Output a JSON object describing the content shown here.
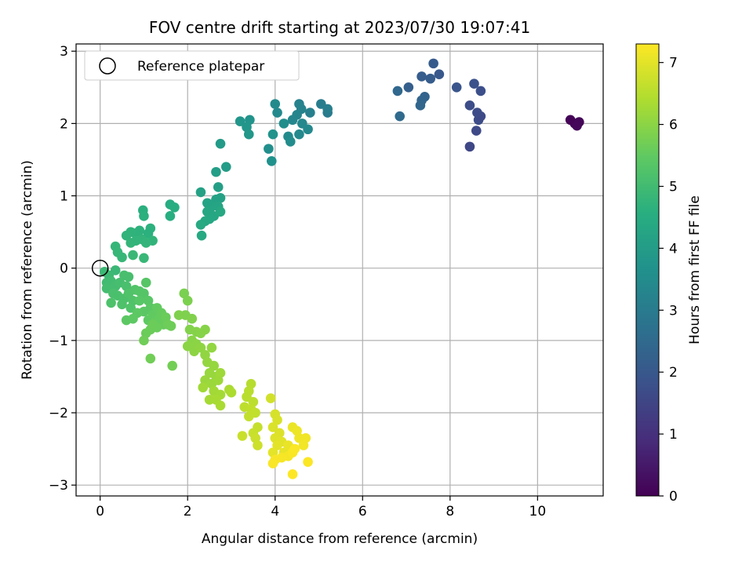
{
  "chart_data": {
    "type": "scatter",
    "title": "FOV centre drift starting at 2023/07/30 19:07:41",
    "xlabel": "Angular distance from reference (arcmin)",
    "ylabel": "Rotation from reference (arcmin)",
    "xlim": [
      -0.55,
      11.5
    ],
    "ylim": [
      -3.15,
      3.1
    ],
    "xticks": [
      0,
      2,
      4,
      6,
      8,
      10
    ],
    "yticks": [
      -3,
      -2,
      -1,
      0,
      1,
      2,
      3
    ],
    "grid": true,
    "legend": {
      "position": "upper-left",
      "entries": [
        "Reference platepar"
      ]
    },
    "reference_point": {
      "x": 0,
      "y": 0
    },
    "colorbar": {
      "label": "Hours from first FF file",
      "min": 0,
      "max": 7.3,
      "ticks": [
        0,
        1,
        2,
        3,
        4,
        5,
        6,
        7
      ],
      "colormap": "viridis"
    },
    "points": [
      {
        "x": 10.75,
        "y": 2.05,
        "c": 0.05
      },
      {
        "x": 10.85,
        "y": 2.0,
        "c": 0.08
      },
      {
        "x": 10.95,
        "y": 2.02,
        "c": 0.1
      },
      {
        "x": 10.9,
        "y": 1.97,
        "c": 0.12
      },
      {
        "x": 8.45,
        "y": 1.68,
        "c": 1.55
      },
      {
        "x": 8.6,
        "y": 1.9,
        "c": 1.6
      },
      {
        "x": 8.65,
        "y": 2.05,
        "c": 1.65
      },
      {
        "x": 8.7,
        "y": 2.1,
        "c": 1.62
      },
      {
        "x": 8.62,
        "y": 2.15,
        "c": 1.68
      },
      {
        "x": 8.45,
        "y": 2.25,
        "c": 1.7
      },
      {
        "x": 8.7,
        "y": 2.45,
        "c": 1.75
      },
      {
        "x": 8.55,
        "y": 2.55,
        "c": 1.8
      },
      {
        "x": 8.15,
        "y": 2.5,
        "c": 1.9
      },
      {
        "x": 7.75,
        "y": 2.68,
        "c": 2.0
      },
      {
        "x": 7.62,
        "y": 2.83,
        "c": 2.05
      },
      {
        "x": 7.55,
        "y": 2.62,
        "c": 2.1
      },
      {
        "x": 7.35,
        "y": 2.65,
        "c": 2.15
      },
      {
        "x": 7.05,
        "y": 2.5,
        "c": 2.2
      },
      {
        "x": 7.42,
        "y": 2.37,
        "c": 2.3
      },
      {
        "x": 7.35,
        "y": 2.32,
        "c": 2.35
      },
      {
        "x": 7.32,
        "y": 2.25,
        "c": 2.4
      },
      {
        "x": 6.8,
        "y": 2.45,
        "c": 2.45
      },
      {
        "x": 6.85,
        "y": 2.1,
        "c": 2.5
      },
      {
        "x": 5.2,
        "y": 2.15,
        "c": 3.0
      },
      {
        "x": 5.05,
        "y": 2.27,
        "c": 3.05
      },
      {
        "x": 5.2,
        "y": 2.2,
        "c": 3.1
      },
      {
        "x": 4.8,
        "y": 2.15,
        "c": 3.15
      },
      {
        "x": 4.55,
        "y": 2.27,
        "c": 3.2
      },
      {
        "x": 4.6,
        "y": 2.2,
        "c": 3.25
      },
      {
        "x": 4.5,
        "y": 2.12,
        "c": 3.3
      },
      {
        "x": 4.4,
        "y": 2.05,
        "c": 3.35
      },
      {
        "x": 4.62,
        "y": 2.0,
        "c": 3.38
      },
      {
        "x": 4.75,
        "y": 1.92,
        "c": 3.4
      },
      {
        "x": 4.55,
        "y": 1.85,
        "c": 3.42
      },
      {
        "x": 4.3,
        "y": 1.82,
        "c": 3.45
      },
      {
        "x": 4.35,
        "y": 1.75,
        "c": 3.5
      },
      {
        "x": 4.2,
        "y": 2.0,
        "c": 3.55
      },
      {
        "x": 4.05,
        "y": 2.15,
        "c": 3.4
      },
      {
        "x": 4.0,
        "y": 2.27,
        "c": 3.45
      },
      {
        "x": 3.85,
        "y": 1.65,
        "c": 3.6
      },
      {
        "x": 3.92,
        "y": 1.48,
        "c": 3.65
      },
      {
        "x": 3.95,
        "y": 1.85,
        "c": 3.7
      },
      {
        "x": 3.42,
        "y": 2.05,
        "c": 3.75
      },
      {
        "x": 3.2,
        "y": 2.03,
        "c": 3.8
      },
      {
        "x": 3.35,
        "y": 1.95,
        "c": 3.82
      },
      {
        "x": 3.4,
        "y": 1.85,
        "c": 3.85
      },
      {
        "x": 2.75,
        "y": 1.72,
        "c": 3.95
      },
      {
        "x": 2.88,
        "y": 1.4,
        "c": 4.0
      },
      {
        "x": 2.65,
        "y": 1.33,
        "c": 4.05
      },
      {
        "x": 2.7,
        "y": 1.12,
        "c": 4.1
      },
      {
        "x": 2.3,
        "y": 1.05,
        "c": 4.15
      },
      {
        "x": 2.65,
        "y": 0.95,
        "c": 4.2
      },
      {
        "x": 2.55,
        "y": 0.85,
        "c": 4.25
      },
      {
        "x": 2.45,
        "y": 0.9,
        "c": 4.22
      },
      {
        "x": 2.75,
        "y": 0.97,
        "c": 4.18
      },
      {
        "x": 2.7,
        "y": 0.85,
        "c": 4.28
      },
      {
        "x": 2.45,
        "y": 0.78,
        "c": 4.3
      },
      {
        "x": 2.6,
        "y": 0.72,
        "c": 4.32
      },
      {
        "x": 2.5,
        "y": 0.68,
        "c": 4.35
      },
      {
        "x": 2.4,
        "y": 0.65,
        "c": 4.36
      },
      {
        "x": 2.75,
        "y": 0.78,
        "c": 4.38
      },
      {
        "x": 2.3,
        "y": 0.6,
        "c": 4.4
      },
      {
        "x": 2.32,
        "y": 0.45,
        "c": 4.42
      },
      {
        "x": 1.6,
        "y": 0.88,
        "c": 4.5
      },
      {
        "x": 1.7,
        "y": 0.84,
        "c": 4.52
      },
      {
        "x": 1.6,
        "y": 0.72,
        "c": 4.55
      },
      {
        "x": 0.98,
        "y": 0.8,
        "c": 4.6
      },
      {
        "x": 1.0,
        "y": 0.72,
        "c": 4.62
      },
      {
        "x": 1.15,
        "y": 0.55,
        "c": 4.65
      },
      {
        "x": 1.1,
        "y": 0.48,
        "c": 4.62
      },
      {
        "x": 0.9,
        "y": 0.52,
        "c": 4.66
      },
      {
        "x": 0.8,
        "y": 0.48,
        "c": 4.68
      },
      {
        "x": 0.7,
        "y": 0.5,
        "c": 4.7
      },
      {
        "x": 0.6,
        "y": 0.45,
        "c": 4.72
      },
      {
        "x": 0.95,
        "y": 0.4,
        "c": 4.74
      },
      {
        "x": 0.82,
        "y": 0.38,
        "c": 4.75
      },
      {
        "x": 1.2,
        "y": 0.38,
        "c": 4.73
      },
      {
        "x": 1.05,
        "y": 0.35,
        "c": 4.76
      },
      {
        "x": 0.7,
        "y": 0.35,
        "c": 4.78
      },
      {
        "x": 0.35,
        "y": 0.3,
        "c": 4.8
      },
      {
        "x": 0.4,
        "y": 0.22,
        "c": 4.82
      },
      {
        "x": 0.5,
        "y": 0.15,
        "c": 4.84
      },
      {
        "x": 0.75,
        "y": 0.18,
        "c": 4.86
      },
      {
        "x": 1.0,
        "y": 0.14,
        "c": 4.85
      },
      {
        "x": 0.35,
        "y": -0.03,
        "c": 4.88
      },
      {
        "x": 0.1,
        "y": -0.05,
        "c": 4.9
      },
      {
        "x": 0.2,
        "y": -0.1,
        "c": 4.92
      },
      {
        "x": 0.15,
        "y": -0.2,
        "c": 5.0
      },
      {
        "x": 0.25,
        "y": -0.18,
        "c": 5.02
      },
      {
        "x": 0.35,
        "y": -0.25,
        "c": 5.05
      },
      {
        "x": 0.15,
        "y": -0.28,
        "c": 5.06
      },
      {
        "x": 0.45,
        "y": -0.2,
        "c": 5.08
      },
      {
        "x": 0.55,
        "y": -0.1,
        "c": 5.1
      },
      {
        "x": 0.65,
        "y": -0.12,
        "c": 5.12
      },
      {
        "x": 0.6,
        "y": -0.25,
        "c": 5.14
      },
      {
        "x": 0.3,
        "y": -0.35,
        "c": 5.15
      },
      {
        "x": 0.4,
        "y": -0.38,
        "c": 5.16
      },
      {
        "x": 0.55,
        "y": -0.42,
        "c": 5.18
      },
      {
        "x": 0.25,
        "y": -0.48,
        "c": 5.2
      },
      {
        "x": 0.5,
        "y": -0.5,
        "c": 5.22
      },
      {
        "x": 0.65,
        "y": -0.35,
        "c": 5.24
      },
      {
        "x": 0.75,
        "y": -0.45,
        "c": 5.25
      },
      {
        "x": 0.7,
        "y": -0.55,
        "c": 5.26
      },
      {
        "x": 0.8,
        "y": -0.3,
        "c": 5.28
      },
      {
        "x": 0.9,
        "y": -0.32,
        "c": 5.3
      },
      {
        "x": 1.0,
        "y": -0.35,
        "c": 5.32
      },
      {
        "x": 1.05,
        "y": -0.2,
        "c": 5.34
      },
      {
        "x": 0.9,
        "y": -0.45,
        "c": 5.36
      },
      {
        "x": 1.1,
        "y": -0.45,
        "c": 5.38
      },
      {
        "x": 1.15,
        "y": -0.55,
        "c": 5.4
      },
      {
        "x": 1.0,
        "y": -0.6,
        "c": 5.42
      },
      {
        "x": 0.85,
        "y": -0.62,
        "c": 5.44
      },
      {
        "x": 0.6,
        "y": -0.72,
        "c": 5.45
      },
      {
        "x": 0.75,
        "y": -0.7,
        "c": 5.46
      },
      {
        "x": 1.1,
        "y": -0.72,
        "c": 5.48
      },
      {
        "x": 1.2,
        "y": -0.65,
        "c": 5.5
      },
      {
        "x": 1.3,
        "y": -0.55,
        "c": 5.52
      },
      {
        "x": 1.25,
        "y": -0.75,
        "c": 5.54
      },
      {
        "x": 1.35,
        "y": -0.7,
        "c": 5.55
      },
      {
        "x": 1.4,
        "y": -0.62,
        "c": 5.56
      },
      {
        "x": 1.45,
        "y": -0.78,
        "c": 5.58
      },
      {
        "x": 1.5,
        "y": -0.68,
        "c": 5.6
      },
      {
        "x": 1.3,
        "y": -0.82,
        "c": 5.6
      },
      {
        "x": 1.15,
        "y": -0.85,
        "c": 5.62
      },
      {
        "x": 1.05,
        "y": -0.9,
        "c": 5.63
      },
      {
        "x": 1.2,
        "y": -0.78,
        "c": 5.64
      },
      {
        "x": 1.55,
        "y": -0.78,
        "c": 5.65
      },
      {
        "x": 1.62,
        "y": -0.8,
        "c": 5.66
      },
      {
        "x": 1.0,
        "y": -1.0,
        "c": 5.68
      },
      {
        "x": 1.15,
        "y": -1.25,
        "c": 5.7
      },
      {
        "x": 1.65,
        "y": -1.35,
        "c": 5.72
      },
      {
        "x": 1.92,
        "y": -0.35,
        "c": 5.8
      },
      {
        "x": 2.0,
        "y": -0.45,
        "c": 5.82
      },
      {
        "x": 1.95,
        "y": -0.65,
        "c": 5.84
      },
      {
        "x": 1.8,
        "y": -0.65,
        "c": 5.86
      },
      {
        "x": 2.1,
        "y": -0.7,
        "c": 5.88
      },
      {
        "x": 2.05,
        "y": -0.85,
        "c": 5.9
      },
      {
        "x": 2.2,
        "y": -0.88,
        "c": 5.92
      },
      {
        "x": 2.3,
        "y": -0.9,
        "c": 5.94
      },
      {
        "x": 2.4,
        "y": -0.85,
        "c": 5.95
      },
      {
        "x": 2.1,
        "y": -1.0,
        "c": 5.96
      },
      {
        "x": 2.2,
        "y": -1.05,
        "c": 5.98
      },
      {
        "x": 2.0,
        "y": -1.08,
        "c": 6.0
      },
      {
        "x": 2.15,
        "y": -1.15,
        "c": 6.02
      },
      {
        "x": 2.3,
        "y": -1.1,
        "c": 6.04
      },
      {
        "x": 2.4,
        "y": -1.2,
        "c": 6.06
      },
      {
        "x": 2.55,
        "y": -1.1,
        "c": 6.08
      },
      {
        "x": 2.45,
        "y": -1.3,
        "c": 6.1
      },
      {
        "x": 2.6,
        "y": -1.35,
        "c": 6.12
      },
      {
        "x": 2.5,
        "y": -1.45,
        "c": 6.14
      },
      {
        "x": 2.65,
        "y": -1.5,
        "c": 6.15
      },
      {
        "x": 2.4,
        "y": -1.55,
        "c": 6.16
      },
      {
        "x": 2.55,
        "y": -1.6,
        "c": 6.18
      },
      {
        "x": 2.7,
        "y": -1.55,
        "c": 6.2
      },
      {
        "x": 2.75,
        "y": -1.45,
        "c": 6.22
      },
      {
        "x": 2.35,
        "y": -1.65,
        "c": 6.24
      },
      {
        "x": 2.6,
        "y": -1.7,
        "c": 6.26
      },
      {
        "x": 2.75,
        "y": -1.75,
        "c": 6.28
      },
      {
        "x": 2.5,
        "y": -1.82,
        "c": 6.3
      },
      {
        "x": 2.65,
        "y": -1.82,
        "c": 6.32
      },
      {
        "x": 2.75,
        "y": -1.9,
        "c": 6.34
      },
      {
        "x": 2.95,
        "y": -1.68,
        "c": 6.36
      },
      {
        "x": 3.0,
        "y": -1.72,
        "c": 6.38
      },
      {
        "x": 3.45,
        "y": -1.6,
        "c": 6.5
      },
      {
        "x": 3.4,
        "y": -1.7,
        "c": 6.52
      },
      {
        "x": 3.35,
        "y": -1.78,
        "c": 6.54
      },
      {
        "x": 3.5,
        "y": -1.85,
        "c": 6.56
      },
      {
        "x": 3.3,
        "y": -1.92,
        "c": 6.58
      },
      {
        "x": 3.45,
        "y": -1.95,
        "c": 6.6
      },
      {
        "x": 3.55,
        "y": -2.0,
        "c": 6.62
      },
      {
        "x": 3.4,
        "y": -2.05,
        "c": 6.64
      },
      {
        "x": 3.6,
        "y": -2.2,
        "c": 6.66
      },
      {
        "x": 3.5,
        "y": -2.28,
        "c": 6.68
      },
      {
        "x": 3.25,
        "y": -2.32,
        "c": 6.7
      },
      {
        "x": 3.55,
        "y": -2.35,
        "c": 6.72
      },
      {
        "x": 3.6,
        "y": -2.45,
        "c": 6.74
      },
      {
        "x": 3.9,
        "y": -1.8,
        "c": 6.8
      },
      {
        "x": 4.0,
        "y": -2.02,
        "c": 6.85
      },
      {
        "x": 4.05,
        "y": -2.1,
        "c": 6.88
      },
      {
        "x": 3.95,
        "y": -2.2,
        "c": 6.9
      },
      {
        "x": 4.1,
        "y": -2.28,
        "c": 6.92
      },
      {
        "x": 4.0,
        "y": -2.35,
        "c": 6.95
      },
      {
        "x": 4.15,
        "y": -2.4,
        "c": 6.98
      },
      {
        "x": 4.05,
        "y": -2.45,
        "c": 7.0
      },
      {
        "x": 3.95,
        "y": -2.55,
        "c": 7.02
      },
      {
        "x": 4.2,
        "y": -2.55,
        "c": 7.05
      },
      {
        "x": 4.3,
        "y": -2.45,
        "c": 7.08
      },
      {
        "x": 4.4,
        "y": -2.2,
        "c": 7.1
      },
      {
        "x": 4.5,
        "y": -2.25,
        "c": 7.12
      },
      {
        "x": 4.55,
        "y": -2.35,
        "c": 7.14
      },
      {
        "x": 4.7,
        "y": -2.35,
        "c": 7.16
      },
      {
        "x": 4.65,
        "y": -2.45,
        "c": 7.18
      },
      {
        "x": 4.3,
        "y": -2.6,
        "c": 7.2
      },
      {
        "x": 4.15,
        "y": -2.62,
        "c": 7.22
      },
      {
        "x": 4.0,
        "y": -2.65,
        "c": 7.24
      },
      {
        "x": 3.95,
        "y": -2.7,
        "c": 7.25
      },
      {
        "x": 4.4,
        "y": -2.55,
        "c": 7.26
      },
      {
        "x": 4.45,
        "y": -2.5,
        "c": 7.27
      },
      {
        "x": 4.75,
        "y": -2.68,
        "c": 7.28
      },
      {
        "x": 4.4,
        "y": -2.85,
        "c": 7.3
      }
    ]
  }
}
